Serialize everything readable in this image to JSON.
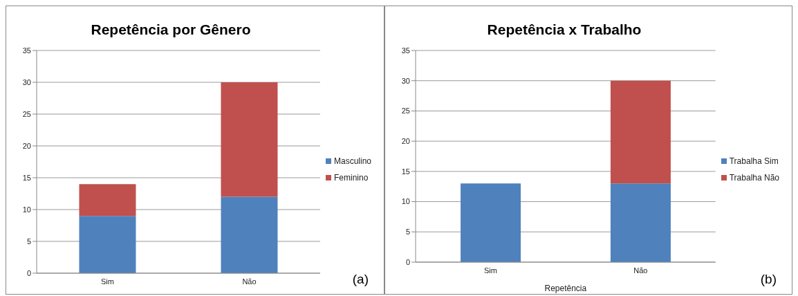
{
  "chart_data": [
    {
      "type": "bar",
      "title": "Repetência por Gênero",
      "categories": [
        "Sim",
        "Não"
      ],
      "stacked": true,
      "ylim": [
        0,
        35
      ],
      "yticks": [
        0,
        5,
        10,
        15,
        20,
        25,
        30,
        35
      ],
      "grid": "y",
      "legend": "right",
      "annotations": [
        "(a)"
      ],
      "series": [
        {
          "name": "Masculino",
          "color": "#4f81bd",
          "values": [
            9,
            12
          ]
        },
        {
          "name": "Feminino",
          "color": "#c0504d",
          "values": [
            5,
            18
          ]
        }
      ]
    },
    {
      "type": "bar",
      "title": "Repetência x Trabalho",
      "xlabel": "Repetência",
      "categories": [
        "Sim",
        "Não"
      ],
      "stacked": true,
      "ylim": [
        0,
        35
      ],
      "yticks": [
        0,
        5,
        10,
        15,
        20,
        25,
        30,
        35
      ],
      "grid": "y",
      "legend": "right",
      "annotations": [
        "(b)"
      ],
      "series": [
        {
          "name": "Trabalha Sim",
          "color": "#4f81bd",
          "values": [
            13,
            13
          ]
        },
        {
          "name": "Trabalha Não",
          "color": "#c0504d",
          "values": [
            0,
            17
          ]
        }
      ]
    }
  ]
}
